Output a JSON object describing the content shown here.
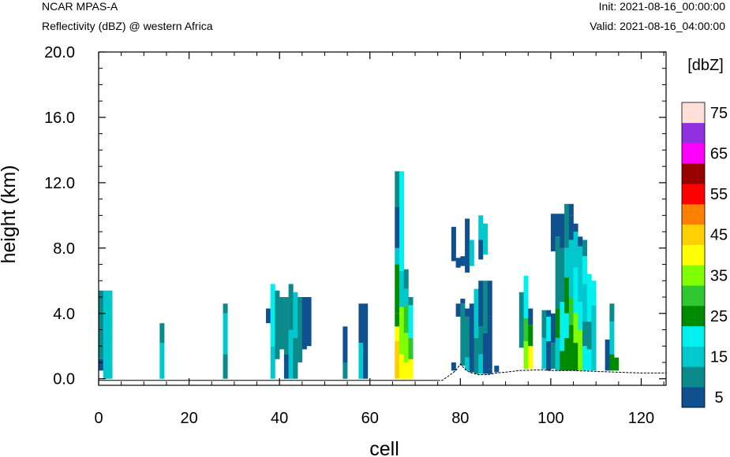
{
  "header": {
    "model": "NCAR MPAS-A",
    "subtitle": "Reflectivity (dBZ) @ western Africa",
    "init": "Init: 2021-08-16_00:00:00",
    "valid": "Valid: 2021-08-16_04:00:00"
  },
  "chart_data": {
    "type": "heatmap",
    "xlabel": "cell",
    "ylabel": "height (km)",
    "xlim": [
      0,
      125.5
    ],
    "ylim": [
      -0.4,
      20.0
    ],
    "x_ticks": [
      "0",
      "20",
      "40",
      "60",
      "80",
      "100",
      "120"
    ],
    "y_ticks": [
      "0.0",
      "4.0",
      "8.0",
      "12.0",
      "16.0",
      "20.0"
    ],
    "colorbar": {
      "units": "[dbZ]",
      "labels": [
        "5",
        "15",
        "25",
        "35",
        "45",
        "55",
        "65",
        "75"
      ],
      "levels": [
        5,
        10,
        15,
        20,
        25,
        30,
        35,
        40,
        45,
        50,
        55,
        60,
        65,
        70,
        75
      ],
      "colors": [
        "#10508f",
        "#0a8a8a",
        "#00c8cc",
        "#00f0f0",
        "#008a00",
        "#30c830",
        "#80ff00",
        "#ffff00",
        "#ffd000",
        "#ff8000",
        "#ff0000",
        "#990000",
        "#ff00ff",
        "#9030e0",
        "#ffe0d8"
      ]
    },
    "terrain": [
      [
        75,
        -0.1
      ],
      [
        76,
        -0.1
      ],
      [
        78,
        0.3
      ],
      [
        79,
        0.5
      ],
      [
        80,
        0.9
      ],
      [
        81,
        0.6
      ],
      [
        82,
        0.4
      ],
      [
        84,
        0.25
      ],
      [
        86,
        0.25
      ],
      [
        88,
        0.35
      ],
      [
        90,
        0.4
      ],
      [
        93,
        0.5
      ],
      [
        98,
        0.55
      ],
      [
        100,
        0.5
      ],
      [
        105,
        0.5
      ],
      [
        110,
        0.45
      ],
      [
        115,
        0.4
      ],
      [
        120,
        0.35
      ],
      [
        125.5,
        0.35
      ]
    ],
    "columns": [
      {
        "x": 0.5,
        "cells": [
          [
            0.5,
            1.2,
            5
          ],
          [
            1.2,
            5.4,
            10
          ]
        ]
      },
      {
        "x": 1.5,
        "cells": [
          [
            0,
            5.4,
            15
          ]
        ]
      },
      {
        "x": 2.5,
        "cells": [
          [
            0,
            5.4,
            15
          ]
        ]
      },
      {
        "x": 14,
        "cells": [
          [
            0,
            2.2,
            15
          ],
          [
            2.2,
            3.4,
            10
          ]
        ]
      },
      {
        "x": 28,
        "cells": [
          [
            0,
            1.5,
            10
          ],
          [
            1.5,
            4.0,
            15
          ],
          [
            4.0,
            4.6,
            10
          ]
        ]
      },
      {
        "x": 37.5,
        "cells": [
          [
            3.4,
            4.3,
            5
          ]
        ]
      },
      {
        "x": 38.5,
        "cells": [
          [
            0,
            2.0,
            15
          ],
          [
            2.0,
            5.8,
            20
          ]
        ]
      },
      {
        "x": 39.5,
        "cells": [
          [
            1.2,
            5.4,
            10
          ]
        ]
      },
      {
        "x": 40.5,
        "cells": [
          [
            1.8,
            5.0,
            10
          ]
        ]
      },
      {
        "x": 41.5,
        "cells": [
          [
            0,
            1.5,
            5
          ],
          [
            1.5,
            5.0,
            10
          ]
        ]
      },
      {
        "x": 42.5,
        "cells": [
          [
            0,
            3.0,
            15
          ],
          [
            3.0,
            5.8,
            10
          ]
        ]
      },
      {
        "x": 43.5,
        "cells": [
          [
            0,
            2.5,
            10
          ],
          [
            2.5,
            5.3,
            15
          ]
        ]
      },
      {
        "x": 44.5,
        "cells": [
          [
            1.0,
            5.0,
            10
          ]
        ]
      },
      {
        "x": 45.5,
        "cells": [
          [
            1.8,
            5.0,
            5
          ]
        ]
      },
      {
        "x": 46.5,
        "cells": [
          [
            2.0,
            5.0,
            5
          ]
        ]
      },
      {
        "x": 54.5,
        "cells": [
          [
            0,
            1.0,
            10
          ],
          [
            1.0,
            3.2,
            5
          ]
        ]
      },
      {
        "x": 58,
        "cells": [
          [
            0,
            2.2,
            15
          ],
          [
            2.2,
            4.6,
            5
          ]
        ]
      },
      {
        "x": 59,
        "cells": [
          [
            0,
            4.6,
            5
          ]
        ]
      },
      {
        "x": 66,
        "cells": [
          [
            0,
            2.3,
            45
          ],
          [
            2.3,
            3.2,
            40
          ],
          [
            3.2,
            4.0,
            25
          ],
          [
            4.0,
            7.0,
            25
          ],
          [
            7.0,
            8.0,
            15
          ],
          [
            8.0,
            10.5,
            5
          ],
          [
            10.5,
            12.7,
            10
          ]
        ]
      },
      {
        "x": 67,
        "cells": [
          [
            0,
            1.5,
            40
          ],
          [
            1.5,
            3.0,
            35
          ],
          [
            3.0,
            4.4,
            35
          ],
          [
            4.4,
            6.6,
            15
          ],
          [
            6.6,
            12.7,
            20
          ]
        ]
      },
      {
        "x": 68,
        "cells": [
          [
            0,
            1.0,
            40
          ],
          [
            1.0,
            2.8,
            35
          ],
          [
            2.8,
            4.5,
            30
          ],
          [
            4.5,
            5.5,
            15
          ],
          [
            5.5,
            6.7,
            10
          ]
        ]
      },
      {
        "x": 69,
        "cells": [
          [
            0,
            1.2,
            40
          ],
          [
            1.2,
            2.5,
            30
          ],
          [
            2.5,
            4.5,
            20
          ],
          [
            4.5,
            5.0,
            10
          ]
        ]
      },
      {
        "x": 78.5,
        "cells": [
          [
            0.5,
            1.0,
            5
          ],
          [
            7.2,
            9.3,
            5
          ]
        ]
      },
      {
        "x": 79.5,
        "cells": [
          [
            3.8,
            4.6,
            5
          ],
          [
            6.8,
            7.4,
            5
          ]
        ]
      },
      {
        "x": 80.5,
        "cells": [
          [
            0.8,
            4.6,
            10
          ],
          [
            4.6,
            4.9,
            5
          ],
          [
            6.9,
            7.5,
            5
          ]
        ]
      },
      {
        "x": 81.5,
        "cells": [
          [
            0.5,
            1.3,
            15
          ],
          [
            1.3,
            3.8,
            10
          ],
          [
            3.8,
            4.3,
            5
          ],
          [
            6.5,
            9.8,
            5
          ]
        ]
      },
      {
        "x": 82.5,
        "cells": [
          [
            0.4,
            4.6,
            5
          ],
          [
            6.9,
            8.5,
            15
          ]
        ]
      },
      {
        "x": 83.5,
        "cells": [
          [
            0.3,
            2.5,
            10
          ],
          [
            2.5,
            5.5,
            15
          ]
        ]
      },
      {
        "x": 84.5,
        "cells": [
          [
            0.3,
            1.5,
            15
          ],
          [
            1.5,
            3.2,
            10
          ],
          [
            3.2,
            6.0,
            5
          ],
          [
            7.3,
            8.5,
            5
          ],
          [
            8.5,
            10.0,
            15
          ]
        ]
      },
      {
        "x": 85.5,
        "cells": [
          [
            0.3,
            2.8,
            5
          ],
          [
            2.8,
            6.0,
            10
          ],
          [
            7.6,
            9.5,
            15
          ]
        ]
      },
      {
        "x": 86.5,
        "cells": [
          [
            0.3,
            0.6,
            5
          ],
          [
            0.6,
            3.8,
            5
          ],
          [
            3.8,
            6.0,
            5
          ]
        ]
      },
      {
        "x": 88,
        "cells": [
          [
            0.4,
            0.8,
            5
          ]
        ]
      },
      {
        "x": 93.5,
        "cells": [
          [
            1.9,
            5.3,
            10
          ]
        ]
      },
      {
        "x": 94.5,
        "cells": [
          [
            0.6,
            2.3,
            35
          ],
          [
            2.3,
            3.7,
            30
          ],
          [
            3.7,
            6.3,
            20
          ]
        ]
      },
      {
        "x": 95.5,
        "cells": [
          [
            0.6,
            2.0,
            40
          ],
          [
            2.0,
            3.3,
            25
          ],
          [
            3.3,
            4.3,
            5
          ]
        ]
      },
      {
        "x": 98.5,
        "cells": [
          [
            0.6,
            2.5,
            15
          ],
          [
            2.5,
            4.2,
            10
          ]
        ]
      },
      {
        "x": 99.5,
        "cells": [
          [
            0.5,
            2.3,
            5
          ],
          [
            2.3,
            3.8,
            20
          ],
          [
            3.8,
            4.2,
            5
          ]
        ]
      },
      {
        "x": 100.5,
        "cells": [
          [
            0.6,
            2.2,
            10
          ],
          [
            2.2,
            4.0,
            5
          ],
          [
            7.8,
            10.1,
            5
          ]
        ]
      },
      {
        "x": 101.5,
        "cells": [
          [
            0.5,
            2.5,
            15
          ],
          [
            2.5,
            4.3,
            25
          ],
          [
            4.3,
            8.7,
            10
          ],
          [
            8.7,
            10.1,
            5
          ]
        ]
      },
      {
        "x": 102.5,
        "cells": [
          [
            0.5,
            1.7,
            25
          ],
          [
            1.7,
            4.7,
            20
          ],
          [
            4.7,
            8.0,
            10
          ],
          [
            8.0,
            10.1,
            5
          ]
        ]
      },
      {
        "x": 103.5,
        "cells": [
          [
            0.5,
            2.5,
            25
          ],
          [
            2.5,
            4.0,
            20
          ],
          [
            4.0,
            6.2,
            25
          ],
          [
            6.2,
            8.0,
            15
          ],
          [
            8.0,
            10.7,
            10
          ]
        ]
      },
      {
        "x": 104.5,
        "cells": [
          [
            0.5,
            3.3,
            25
          ],
          [
            3.3,
            5.0,
            30
          ],
          [
            5.0,
            8.5,
            15
          ],
          [
            8.5,
            10.0,
            5
          ],
          [
            10.0,
            10.7,
            5
          ]
        ]
      },
      {
        "x": 105.5,
        "cells": [
          [
            0.5,
            2.2,
            25
          ],
          [
            2.2,
            4.0,
            35
          ],
          [
            4.0,
            6.8,
            20
          ],
          [
            6.8,
            9.0,
            15
          ],
          [
            9.0,
            9.5,
            5
          ]
        ]
      },
      {
        "x": 106.5,
        "cells": [
          [
            0.5,
            3.0,
            35
          ],
          [
            3.0,
            4.7,
            20
          ],
          [
            4.7,
            8.1,
            15
          ],
          [
            8.1,
            8.7,
            5
          ]
        ]
      },
      {
        "x": 107.5,
        "cells": [
          [
            0.5,
            2.0,
            20
          ],
          [
            2.0,
            3.5,
            10
          ],
          [
            3.5,
            5.8,
            15
          ],
          [
            5.8,
            7.5,
            20
          ],
          [
            7.5,
            8.5,
            10
          ]
        ]
      },
      {
        "x": 108.5,
        "cells": [
          [
            0.5,
            1.8,
            20
          ],
          [
            1.8,
            3.5,
            10
          ],
          [
            3.5,
            6.4,
            20
          ]
        ]
      },
      {
        "x": 109.5,
        "cells": [
          [
            0.5,
            4.5,
            15
          ],
          [
            4.5,
            6.0,
            20
          ]
        ]
      },
      {
        "x": 112.5,
        "cells": [
          [
            0.5,
            2.4,
            5
          ]
        ]
      },
      {
        "x": 113.5,
        "cells": [
          [
            0.5,
            1.5,
            25
          ],
          [
            1.5,
            3.5,
            15
          ],
          [
            3.5,
            4.6,
            10
          ]
        ]
      },
      {
        "x": 114.5,
        "cells": [
          [
            0.5,
            1.3,
            25
          ]
        ]
      }
    ]
  }
}
